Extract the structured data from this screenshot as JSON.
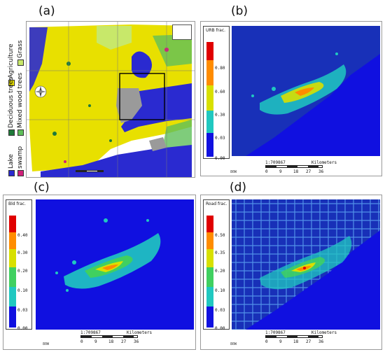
{
  "panels": {
    "a": {
      "label": "(a)"
    },
    "b": {
      "label": "(b)",
      "colorbar_title": "URB frac.",
      "ticks": [
        "0.80",
        "0.60",
        "0.30",
        "0.03",
        "0.00"
      ],
      "scale_ratio": "1:709867",
      "scale_unit": "Kilometers",
      "scale_ticks": [
        "0",
        "9",
        "18",
        "27",
        "36"
      ],
      "lon_label": "80W"
    },
    "c": {
      "label": "(c)",
      "colorbar_title": "Bld frac.",
      "ticks": [
        "0.40",
        "0.30",
        "0.20",
        "0.10",
        "0.03",
        "0.00"
      ],
      "scale_ratio": "1:709867",
      "scale_unit": "Kilometers",
      "scale_ticks": [
        "0",
        "9",
        "18",
        "27",
        "36"
      ],
      "lon_label": "80W"
    },
    "d": {
      "label": "(d)",
      "colorbar_title": "Road frac.",
      "ticks": [
        "0.50",
        "0.35",
        "0.20",
        "0.10",
        "0.03",
        "0.00"
      ],
      "scale_ratio": "1:709867",
      "scale_unit": "Kilometers",
      "scale_ticks": [
        "0",
        "9",
        "18",
        "27",
        "36"
      ],
      "lon_label": "80W"
    }
  },
  "legend": {
    "items": [
      {
        "name": "Agriculture",
        "color": "#e8e000"
      },
      {
        "name": "Grass",
        "color": "#c8e86a"
      },
      {
        "name": "Deciduous trees",
        "color": "#1f7a3a"
      },
      {
        "name": "Mixed wood trees",
        "color": "#5fbf5a"
      },
      {
        "name": "Lake",
        "color": "#2a2ad0"
      },
      {
        "name": "swamp",
        "color": "#d0207a"
      }
    ]
  },
  "colors": {
    "water": "#1010e0",
    "urban_background": "#1830b8",
    "agriculture": "#e8e000",
    "urban_gray": "#9a9a9a"
  }
}
